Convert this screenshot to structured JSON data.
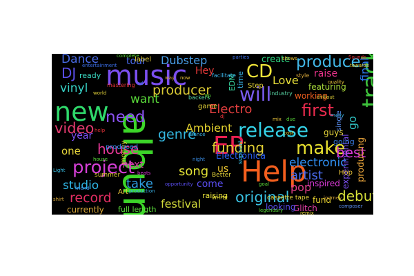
{
  "words": [
    {
      "text": "album",
      "color": "#3cd629"
    },
    {
      "text": "music",
      "color": "#7b4ff0"
    },
    {
      "text": "new",
      "color": "#2fd96b"
    },
    {
      "text": "Help",
      "color": "#f45f1e"
    },
    {
      "text": "release",
      "color": "#34d1e6"
    },
    {
      "text": "track",
      "color": "#3ec43c"
    },
    {
      "text": "EP",
      "color": "#e81f4f"
    },
    {
      "text": "project",
      "color": "#d53fd6"
    },
    {
      "text": "CD",
      "color": "#f2e63a"
    },
    {
      "text": "produce",
      "color": "#42b7e6"
    },
    {
      "text": "will",
      "color": "#7a5cf0"
    },
    {
      "text": "need",
      "color": "#8c53f2"
    },
    {
      "text": "make",
      "color": "#e7e02f"
    },
    {
      "text": "first",
      "color": "#ea2b4e"
    },
    {
      "text": "house",
      "color": "#e33694"
    },
    {
      "text": "video",
      "color": "#e23a6e"
    },
    {
      "text": "funding",
      "color": "#e3d134"
    },
    {
      "text": "original",
      "color": "#39c2e2"
    },
    {
      "text": "Dance",
      "color": "#4a6ce8"
    },
    {
      "text": "DJ",
      "color": "#5a4ee8"
    },
    {
      "text": "Dubstep",
      "color": "#4a9fe8"
    },
    {
      "text": "vinyl",
      "color": "#37d1c6"
    },
    {
      "text": "Electro",
      "color": "#e33f3f"
    },
    {
      "text": "genre",
      "color": "#34b8e0"
    },
    {
      "text": "producer",
      "color": "#d9c934"
    },
    {
      "text": "record",
      "color": "#e52e63"
    },
    {
      "text": "electronic",
      "color": "#2f8ef0"
    },
    {
      "text": "artist",
      "color": "#4a6cf0"
    },
    {
      "text": "studio",
      "color": "#2fb7e6"
    },
    {
      "text": "Love",
      "color": "#e8e03a"
    },
    {
      "text": "want",
      "color": "#5ad93a"
    },
    {
      "text": "song",
      "color": "#e0e035"
    },
    {
      "text": "debut",
      "color": "#d8e23a"
    },
    {
      "text": "best",
      "color": "#d83ad6"
    },
    {
      "text": "take",
      "color": "#2f9ee0"
    },
    {
      "text": "festival",
      "color": "#d0d93a"
    },
    {
      "text": "Ambient",
      "color": "#e3d22f"
    },
    {
      "text": "pop",
      "color": "#e33f8a"
    },
    {
      "text": "raise",
      "color": "#e8338a"
    },
    {
      "text": "go",
      "color": "#2fc2c2"
    },
    {
      "text": "final",
      "color": "#2a76e6"
    },
    {
      "text": "year",
      "color": "#7a4ff0"
    },
    {
      "text": "one",
      "color": "#e6d53a"
    },
    {
      "text": "tour",
      "color": "#4a6cf0"
    },
    {
      "text": "Hey",
      "color": "#ea3a3a"
    },
    {
      "text": "create",
      "color": "#2ed17e"
    },
    {
      "text": "next",
      "color": "#d63aa6"
    },
    {
      "text": "featuring",
      "color": "#a8d93a"
    },
    {
      "text": "working",
      "color": "#ea5c1e"
    },
    {
      "text": "Electronica",
      "color": "#2a5ef0"
    },
    {
      "text": "us",
      "color": "#e8c22f"
    },
    {
      "text": "come",
      "color": "#5a4ef0"
    },
    {
      "text": "guys",
      "color": "#e6d53a"
    },
    {
      "text": "Glitch",
      "color": "#e33fa6"
    },
    {
      "text": "fund",
      "color": "#e8d22f"
    },
    {
      "text": "record",
      "color": "#e52e63"
    },
    {
      "text": "inspired",
      "color": "#d93ad6"
    },
    {
      "text": "producing",
      "color": "#e6a23a"
    },
    {
      "text": "experimental",
      "color": "#7a4ff0"
    },
    {
      "text": "single",
      "color": "#5a8ef0"
    },
    {
      "text": "EDM",
      "color": "#3ae0a8"
    },
    {
      "text": "time",
      "color": "#3ab2e6"
    },
    {
      "text": "Step",
      "color": "#e6d53a"
    },
    {
      "text": "label",
      "color": "#e8d23a"
    },
    {
      "text": "ready",
      "color": "#3ad9c2"
    },
    {
      "text": "money",
      "color": "#d9c934"
    },
    {
      "text": "produced",
      "color": "#2f8ef0"
    },
    {
      "text": "raising",
      "color": "#e6e03a"
    },
    {
      "text": "currently",
      "color": "#d9a83a"
    },
    {
      "text": "full length",
      "color": "#5ae03a"
    },
    {
      "text": "looking",
      "color": "#5a4ef0"
    },
    {
      "text": "Art",
      "color": "#e8c23a"
    },
    {
      "text": "summer",
      "color": "#d9c934"
    },
    {
      "text": "Better",
      "color": "#e6d53a"
    },
    {
      "text": "support",
      "color": "#3ac2e6"
    },
    {
      "text": "cassette tape",
      "color": "#e6d53a"
    },
    {
      "text": "going",
      "color": "#3a7ee6"
    },
    {
      "text": "Hop",
      "color": "#e8c23a"
    },
    {
      "text": "game",
      "color": "#e6d53a"
    },
    {
      "text": "facilitate",
      "color": "#3ab2e6"
    },
    {
      "text": "entertainment",
      "color": "#3a6ee6"
    },
    {
      "text": "mastering",
      "color": "#e6333a"
    },
    {
      "text": "backers",
      "color": "#5ad9a8"
    },
    {
      "text": "complete",
      "color": "#5ad93a"
    },
    {
      "text": "style",
      "color": "#d9a83a"
    },
    {
      "text": "quality",
      "color": "#e8c23a"
    },
    {
      "text": "industry",
      "color": "#5ad9a8"
    },
    {
      "text": "shows",
      "color": "#e8c23a"
    },
    {
      "text": "parties",
      "color": "#3a6ee6"
    },
    {
      "text": "chillout",
      "color": "#e6d53a"
    },
    {
      "text": "journey",
      "color": "#d9a83a"
    },
    {
      "text": "opportunity",
      "color": "#5a4ef0"
    },
    {
      "text": "production",
      "color": "#3ab2e6"
    },
    {
      "text": "remix",
      "color": "#e6d53a"
    },
    {
      "text": "WHITE",
      "color": "#e8e03a"
    },
    {
      "text": "composer",
      "color": "#5a8ef0"
    },
    {
      "text": "towards",
      "color": "#e6d53a"
    },
    {
      "text": "Sounds",
      "color": "#e8333a"
    },
    {
      "text": "friend",
      "color": "#3a8ee6"
    },
    {
      "text": "legendary",
      "color": "#5ad93a"
    },
    {
      "text": "shirt",
      "color": "#d9a83a"
    },
    {
      "text": "Light",
      "color": "#3ac2e6"
    },
    {
      "text": "cost",
      "color": "#e6d53a"
    },
    {
      "text": "due",
      "color": "#5ad93a"
    },
    {
      "text": "dj",
      "color": "#e8333a"
    },
    {
      "text": "way",
      "color": "#d9a83a"
    },
    {
      "text": "cd",
      "color": "#3a6ee6"
    },
    {
      "text": "Ep",
      "color": "#5ad93a"
    },
    {
      "text": "now",
      "color": "#e8c23a"
    },
    {
      "text": "many",
      "color": "#3ab2e6"
    },
    {
      "text": "world",
      "color": "#e6d53a"
    },
    {
      "text": "beats",
      "color": "#d93ad6"
    },
    {
      "text": "night",
      "color": "#3a8ee6"
    },
    {
      "text": "goal",
      "color": "#5ad93a"
    },
    {
      "text": "mix",
      "color": "#e8c23a"
    },
    {
      "text": "help",
      "color": "#e8333a"
    },
    {
      "text": "trance",
      "color": "#3ab2e6"
    },
    {
      "text": "house",
      "color": "#5ad93a"
    }
  ]
}
